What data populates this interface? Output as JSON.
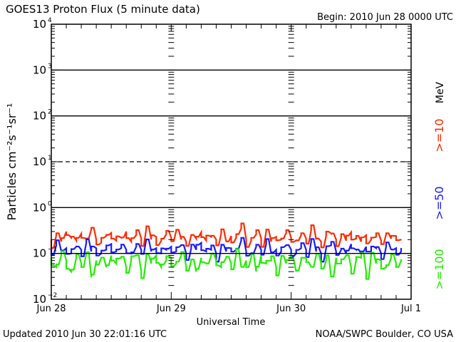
{
  "title": "GOES13 Proton Flux (5 minute data)",
  "begin": "Begin: 2010 Jun 28 0000 UTC",
  "updated": "Updated 2010 Jun 30 22:01:16 UTC",
  "source": "NOAA/SWPC Boulder, CO USA",
  "chart_data": {
    "type": "line",
    "title": "GOES13 Proton Flux (5 minute data)",
    "xlabel": "Universal Time",
    "ylabel": "Particles cm⁻²s⁻¹sr⁻¹",
    "yscale": "log",
    "ylim": [
      0.01,
      10000
    ],
    "xlim_hours": [
      0,
      72
    ],
    "x_ticks": [
      {
        "hour": 0,
        "label": "Jun 28"
      },
      {
        "hour": 24,
        "label": "Jun 29"
      },
      {
        "hour": 48,
        "label": "Jun 30"
      },
      {
        "hour": 72,
        "label": "Jul 1"
      }
    ],
    "y_ticks": [
      {
        "exp": 4,
        "label": "10"
      },
      {
        "exp": 3,
        "label": "10"
      },
      {
        "exp": 2,
        "label": "10"
      },
      {
        "exp": 1,
        "label": "10"
      },
      {
        "exp": 0,
        "label": "10"
      },
      {
        "exp": -1,
        "label": "10"
      },
      {
        "exp": -2,
        "label": "10"
      }
    ],
    "unit_label": "MeV",
    "data_end_hour": 70,
    "series": [
      {
        "name": ">=10",
        "color": "#ff2a00",
        "values": [
          0.2,
          0.25,
          0.18,
          0.3,
          0.22,
          0.19,
          0.27,
          0.21,
          0.33,
          0.2,
          0.17,
          0.24,
          0.28,
          0.19,
          0.22,
          0.3,
          0.18,
          0.25,
          0.21,
          0.34,
          0.2,
          0.23,
          0.19,
          0.26,
          0.22,
          0.31,
          0.2,
          0.18,
          0.25,
          0.21,
          0.29,
          0.19,
          0.23,
          0.2,
          0.27,
          0.18,
          0.24,
          0.22,
          0.35,
          0.2,
          0.19,
          0.26,
          0.21,
          0.3,
          0.18,
          0.23,
          0.2,
          0.28,
          0.22,
          0.19,
          0.25,
          0.21,
          0.32,
          0.2,
          0.18,
          0.24,
          0.27,
          0.2,
          0.22,
          0.19,
          0.29,
          0.21,
          0.18,
          0.25,
          0.2,
          0.23,
          0.19,
          0.26,
          0.21,
          0.24,
          0.2
        ]
      },
      {
        "name": ">=50",
        "color": "#1a1aff",
        "values": [
          0.12,
          0.15,
          0.11,
          0.13,
          0.1,
          0.14,
          0.12,
          0.17,
          0.11,
          0.13,
          0.1,
          0.12,
          0.16,
          0.11,
          0.13,
          0.12,
          0.1,
          0.14,
          0.12,
          0.2,
          0.11,
          0.13,
          0.1,
          0.12,
          0.14,
          0.11,
          0.15,
          0.1,
          0.13,
          0.12,
          0.17,
          0.11,
          0.12,
          0.1,
          0.14,
          0.11,
          0.13,
          0.12,
          0.19,
          0.11,
          0.1,
          0.14,
          0.12,
          0.16,
          0.1,
          0.12,
          0.11,
          0.15,
          0.12,
          0.1,
          0.13,
          0.12,
          0.18,
          0.11,
          0.1,
          0.13,
          0.15,
          0.11,
          0.12,
          0.1,
          0.16,
          0.12,
          0.1,
          0.14,
          0.11,
          0.13,
          0.1,
          0.14,
          0.12,
          0.13,
          0.11
        ]
      },
      {
        "name": ">=100",
        "color": "#22ee00",
        "values": [
          0.08,
          0.05,
          0.09,
          0.07,
          0.04,
          0.08,
          0.06,
          0.1,
          0.03,
          0.07,
          0.08,
          0.05,
          0.09,
          0.06,
          0.08,
          0.05,
          0.07,
          0.09,
          0.04,
          0.08,
          0.06,
          0.09,
          0.05,
          0.07,
          0.08,
          0.06,
          0.09,
          0.05,
          0.07,
          0.04,
          0.08,
          0.06,
          0.09,
          0.07,
          0.05,
          0.08,
          0.06,
          0.1,
          0.05,
          0.07,
          0.08,
          0.04,
          0.09,
          0.06,
          0.07,
          0.05,
          0.08,
          0.06,
          0.09,
          0.04,
          0.07,
          0.08,
          0.05,
          0.09,
          0.06,
          0.07,
          0.03,
          0.08,
          0.06,
          0.09,
          0.05,
          0.07,
          0.08,
          0.04,
          0.09,
          0.06,
          0.07,
          0.05,
          0.08,
          0.06,
          0.07
        ]
      }
    ]
  }
}
